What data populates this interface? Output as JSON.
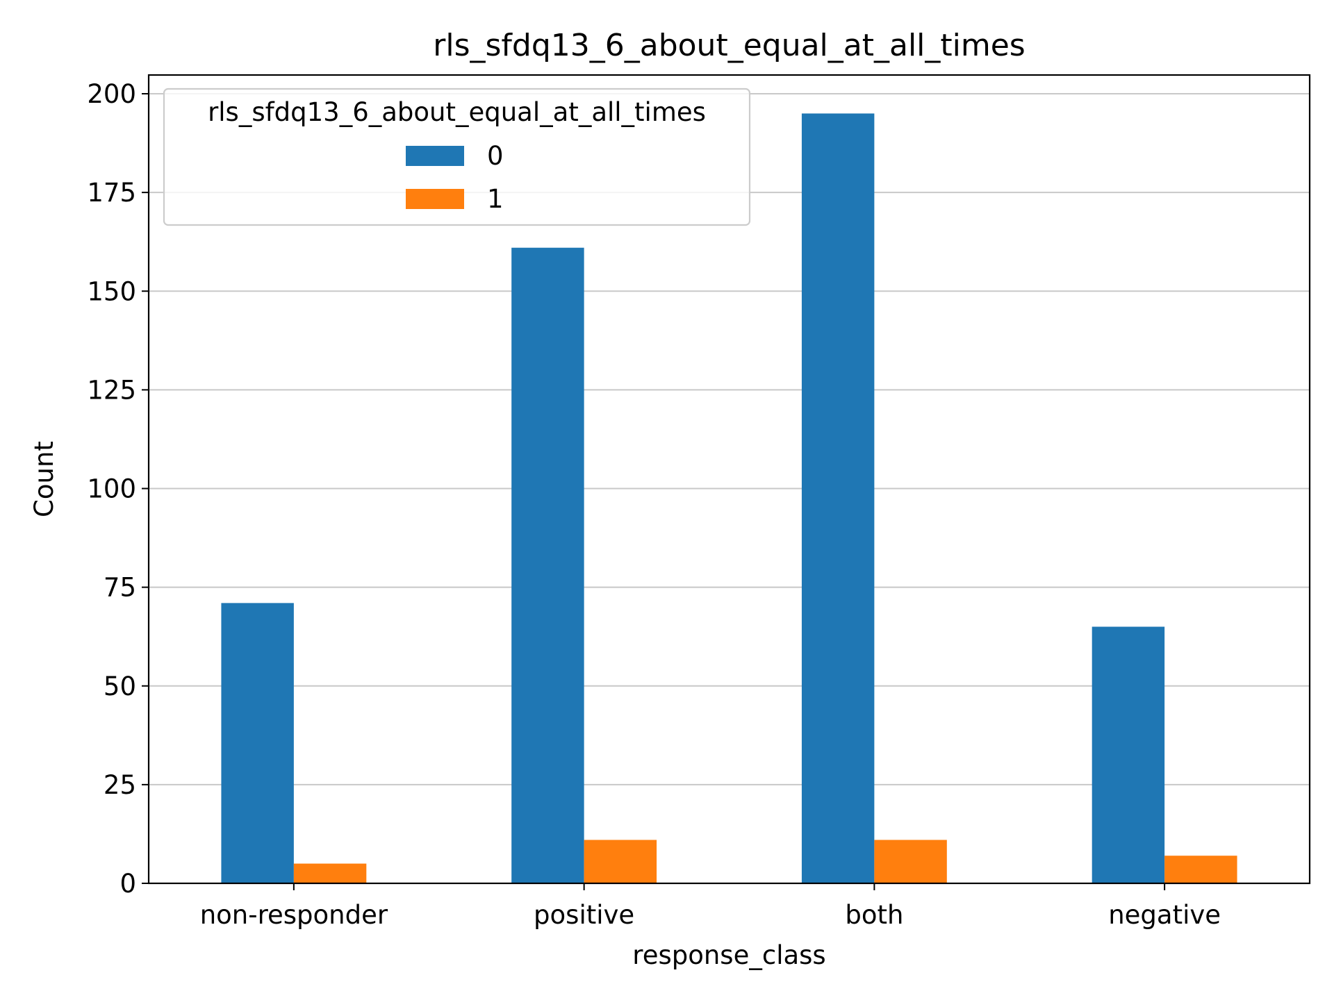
{
  "chart_data": {
    "type": "bar",
    "title": "rls_sfdq13_6_about_equal_at_all_times",
    "xlabel": "response_class",
    "ylabel": "Count",
    "categories": [
      "non-responder",
      "positive",
      "both",
      "negative"
    ],
    "series": [
      {
        "name": "0",
        "color": "#1f77b4",
        "values": [
          71,
          161,
          195,
          65
        ]
      },
      {
        "name": "1",
        "color": "#ff7f0e",
        "values": [
          5,
          11,
          11,
          7
        ]
      }
    ],
    "ylim": [
      0,
      204.75
    ],
    "yticks": [
      0,
      25,
      50,
      75,
      100,
      125,
      150,
      175,
      200
    ],
    "grid": "y",
    "legend": {
      "title": "rls_sfdq13_6_about_equal_at_all_times",
      "position": "top-left"
    }
  }
}
